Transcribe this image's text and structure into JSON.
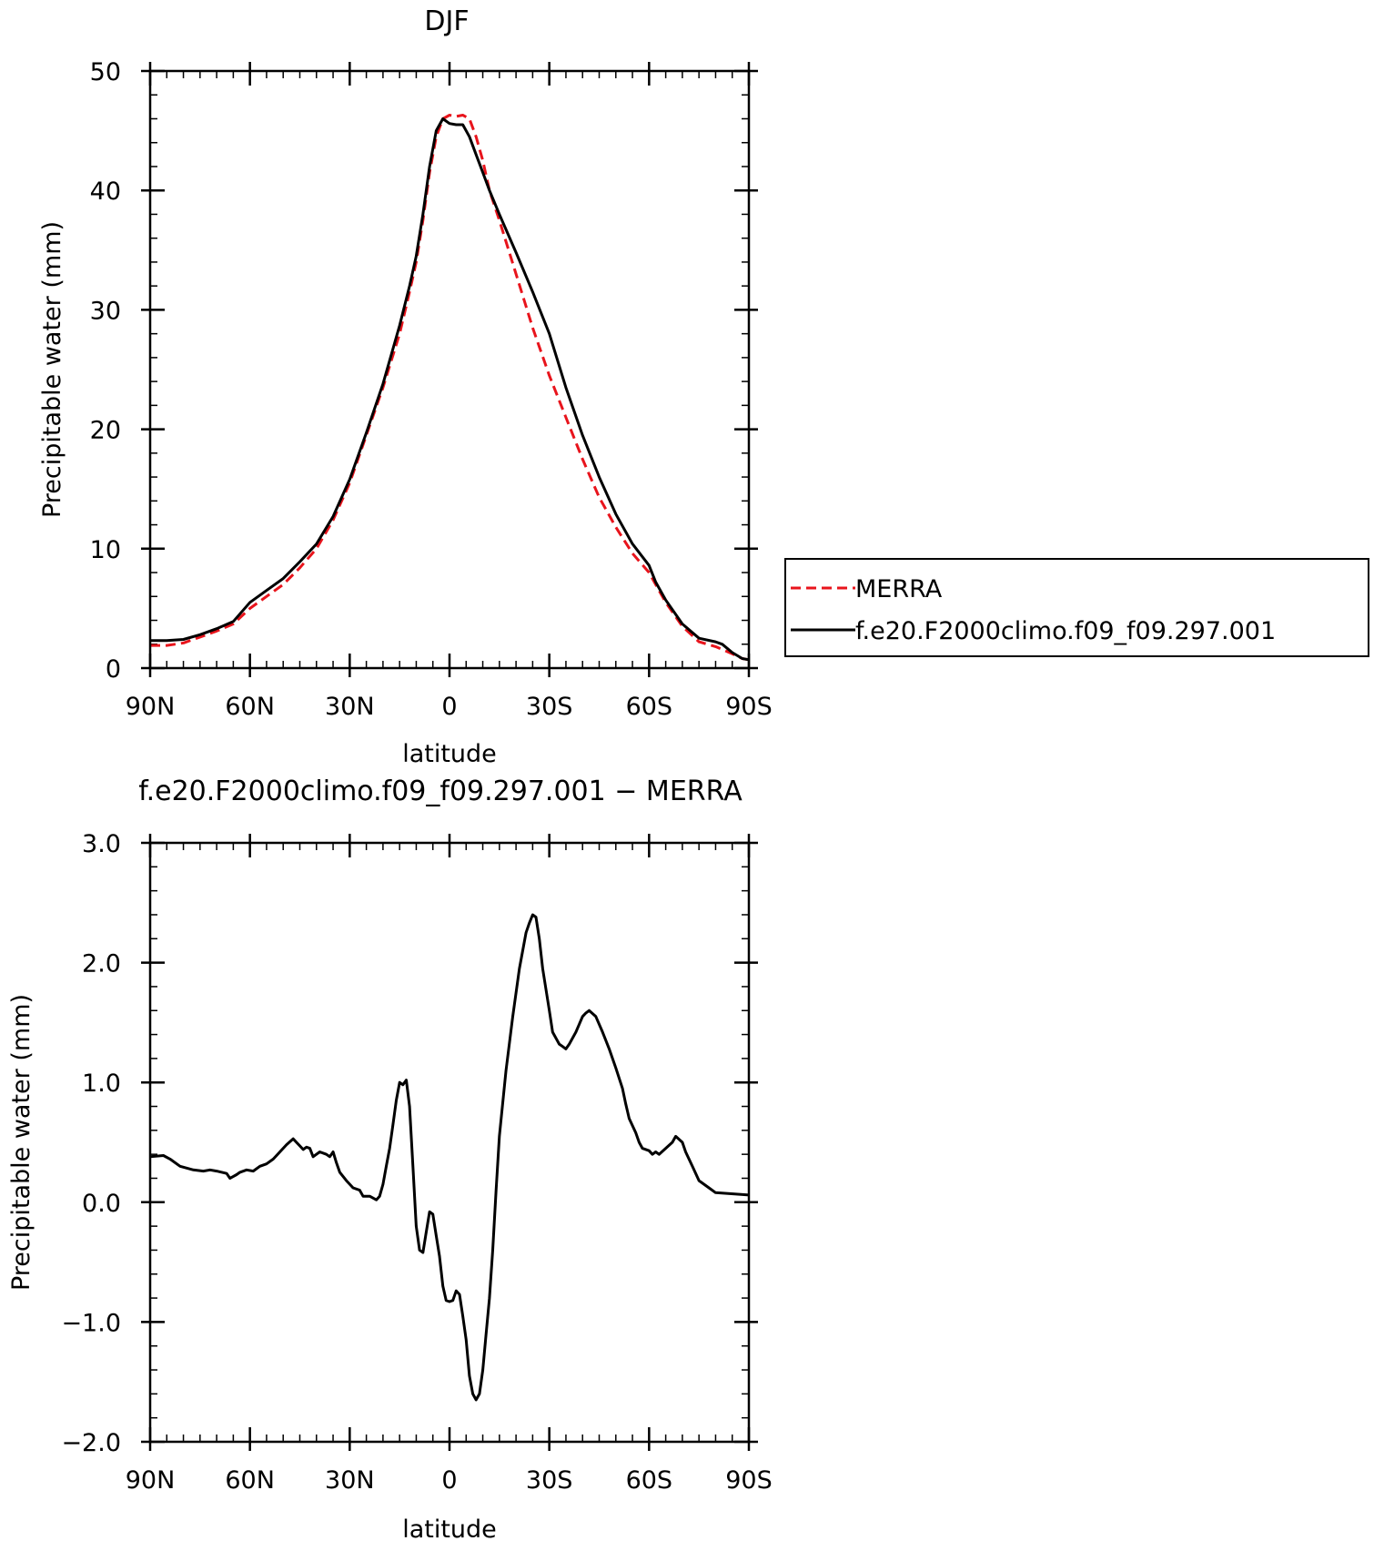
{
  "chart_data": [
    {
      "type": "line",
      "title": "DJF",
      "xlabel": "latitude",
      "ylabel": "Precipitable water (mm)",
      "xlim": [
        90,
        -90
      ],
      "ylim": [
        0,
        50
      ],
      "x_ticks": [
        {
          "value": 90,
          "label": "90N"
        },
        {
          "value": 60,
          "label": "60N"
        },
        {
          "value": 30,
          "label": "30N"
        },
        {
          "value": 0,
          "label": "0"
        },
        {
          "value": -30,
          "label": "30S"
        },
        {
          "value": -60,
          "label": "60S"
        },
        {
          "value": -90,
          "label": "90S"
        }
      ],
      "y_ticks": [
        {
          "value": 0,
          "label": "0"
        },
        {
          "value": 10,
          "label": "10"
        },
        {
          "value": 20,
          "label": "20"
        },
        {
          "value": 30,
          "label": "30"
        },
        {
          "value": 40,
          "label": "40"
        },
        {
          "value": 50,
          "label": "50"
        }
      ],
      "legend_position": "right",
      "series": [
        {
          "name": "MERRA",
          "color": "#e8141c",
          "dash": "dashed",
          "points": [
            [
              90,
              1.9
            ],
            [
              85,
              1.9
            ],
            [
              80,
              2.1
            ],
            [
              75,
              2.6
            ],
            [
              70,
              3.1
            ],
            [
              65,
              3.7
            ],
            [
              60,
              5.0
            ],
            [
              55,
              6.0
            ],
            [
              50,
              7.0
            ],
            [
              45,
              8.4
            ],
            [
              40,
              10.0
            ],
            [
              35,
              12.4
            ],
            [
              30,
              15.5
            ],
            [
              25,
              19.5
            ],
            [
              20,
              23.5
            ],
            [
              15,
              28.0
            ],
            [
              12,
              31.5
            ],
            [
              10,
              34.0
            ],
            [
              8,
              37.5
            ],
            [
              6,
              41.5
            ],
            [
              4,
              44.5
            ],
            [
              2,
              46.0
            ],
            [
              0,
              46.3
            ],
            [
              -2,
              46.2
            ],
            [
              -4,
              46.3
            ],
            [
              -6,
              46.0
            ],
            [
              -8,
              44.5
            ],
            [
              -10,
              42.5
            ],
            [
              -12,
              40.0
            ],
            [
              -15,
              37.5
            ],
            [
              -20,
              33.0
            ],
            [
              -25,
              28.5
            ],
            [
              -30,
              24.5
            ],
            [
              -35,
              21.0
            ],
            [
              -40,
              17.5
            ],
            [
              -45,
              14.3
            ],
            [
              -50,
              11.8
            ],
            [
              -55,
              9.6
            ],
            [
              -60,
              8.0
            ],
            [
              -62,
              7.0
            ],
            [
              -65,
              5.5
            ],
            [
              -70,
              3.5
            ],
            [
              -75,
              2.2
            ],
            [
              -80,
              1.8
            ],
            [
              -85,
              1.2
            ],
            [
              -88,
              0.8
            ],
            [
              -90,
              0.7
            ]
          ]
        },
        {
          "name": "f.e20.F2000climo.f09_f09.297.001",
          "color": "#000000",
          "dash": "solid",
          "points": [
            [
              90,
              2.3
            ],
            [
              85,
              2.3
            ],
            [
              80,
              2.4
            ],
            [
              75,
              2.8
            ],
            [
              70,
              3.3
            ],
            [
              65,
              3.9
            ],
            [
              60,
              5.5
            ],
            [
              55,
              6.5
            ],
            [
              50,
              7.5
            ],
            [
              45,
              8.9
            ],
            [
              40,
              10.4
            ],
            [
              35,
              12.7
            ],
            [
              30,
              15.8
            ],
            [
              25,
              19.7
            ],
            [
              20,
              23.8
            ],
            [
              15,
              28.7
            ],
            [
              12,
              32.0
            ],
            [
              10,
              34.5
            ],
            [
              8,
              38.0
            ],
            [
              6,
              42.0
            ],
            [
              4,
              45.0
            ],
            [
              2,
              46.0
            ],
            [
              0,
              45.6
            ],
            [
              -2,
              45.5
            ],
            [
              -4,
              45.5
            ],
            [
              -6,
              44.5
            ],
            [
              -8,
              43.0
            ],
            [
              -10,
              41.5
            ],
            [
              -12,
              40.0
            ],
            [
              -15,
              38.0
            ],
            [
              -20,
              34.8
            ],
            [
              -25,
              31.5
            ],
            [
              -30,
              28.0
            ],
            [
              -35,
              23.5
            ],
            [
              -40,
              19.5
            ],
            [
              -45,
              16.0
            ],
            [
              -50,
              12.9
            ],
            [
              -55,
              10.4
            ],
            [
              -60,
              8.6
            ],
            [
              -62,
              7.2
            ],
            [
              -65,
              5.7
            ],
            [
              -70,
              3.7
            ],
            [
              -75,
              2.5
            ],
            [
              -80,
              2.2
            ],
            [
              -82,
              2.0
            ],
            [
              -85,
              1.3
            ],
            [
              -88,
              0.8
            ],
            [
              -90,
              0.7
            ]
          ]
        }
      ]
    },
    {
      "type": "line",
      "title": "f.e20.F2000climo.f09_f09.297.001 − MERRA",
      "xlabel": "latitude",
      "ylabel": "Precipitable water (mm)",
      "xlim": [
        90,
        -90
      ],
      "ylim": [
        -2.0,
        3.0
      ],
      "x_ticks": [
        {
          "value": 90,
          "label": "90N"
        },
        {
          "value": 60,
          "label": "60N"
        },
        {
          "value": 30,
          "label": "30N"
        },
        {
          "value": 0,
          "label": "0"
        },
        {
          "value": -30,
          "label": "30S"
        },
        {
          "value": -60,
          "label": "60S"
        },
        {
          "value": -90,
          "label": "90S"
        }
      ],
      "y_ticks": [
        {
          "value": -2.0,
          "label": "−2.0"
        },
        {
          "value": -1.0,
          "label": "−1.0"
        },
        {
          "value": 0.0,
          "label": "0.0"
        },
        {
          "value": 1.0,
          "label": "1.0"
        },
        {
          "value": 2.0,
          "label": "2.0"
        },
        {
          "value": 3.0,
          "label": "3.0"
        }
      ],
      "series": [
        {
          "name": "",
          "color": "#000000",
          "dash": "solid",
          "points": [
            [
              90,
              0.38
            ],
            [
              86,
              0.39
            ],
            [
              84,
              0.36
            ],
            [
              81,
              0.3
            ],
            [
              77,
              0.27
            ],
            [
              74,
              0.26
            ],
            [
              72,
              0.27
            ],
            [
              70,
              0.26
            ],
            [
              67,
              0.24
            ],
            [
              66,
              0.2
            ],
            [
              64,
              0.23
            ],
            [
              63,
              0.25
            ],
            [
              61,
              0.27
            ],
            [
              59,
              0.26
            ],
            [
              57,
              0.3
            ],
            [
              55,
              0.32
            ],
            [
              53,
              0.36
            ],
            [
              51,
              0.42
            ],
            [
              49,
              0.48
            ],
            [
              47,
              0.53
            ],
            [
              46,
              0.5
            ],
            [
              45,
              0.47
            ],
            [
              44,
              0.44
            ],
            [
              43,
              0.46
            ],
            [
              42,
              0.45
            ],
            [
              41,
              0.38
            ],
            [
              39,
              0.42
            ],
            [
              37,
              0.4
            ],
            [
              36,
              0.38
            ],
            [
              35,
              0.42
            ],
            [
              34,
              0.33
            ],
            [
              33,
              0.25
            ],
            [
              31,
              0.18
            ],
            [
              29,
              0.12
            ],
            [
              27,
              0.1
            ],
            [
              26,
              0.05
            ],
            [
              24,
              0.05
            ],
            [
              22,
              0.02
            ],
            [
              21,
              0.05
            ],
            [
              20,
              0.15
            ],
            [
              19,
              0.3
            ],
            [
              18,
              0.45
            ],
            [
              17,
              0.65
            ],
            [
              16,
              0.85
            ],
            [
              15,
              1.0
            ],
            [
              14,
              0.98
            ],
            [
              13,
              1.02
            ],
            [
              12,
              0.8
            ],
            [
              11,
              0.3
            ],
            [
              10,
              -0.2
            ],
            [
              9,
              -0.4
            ],
            [
              8,
              -0.42
            ],
            [
              7,
              -0.25
            ],
            [
              6,
              -0.08
            ],
            [
              5,
              -0.1
            ],
            [
              4,
              -0.28
            ],
            [
              3,
              -0.45
            ],
            [
              2,
              -0.7
            ],
            [
              1,
              -0.82
            ],
            [
              0,
              -0.83
            ],
            [
              -1,
              -0.82
            ],
            [
              -2,
              -0.74
            ],
            [
              -3,
              -0.77
            ],
            [
              -4,
              -0.95
            ],
            [
              -5,
              -1.15
            ],
            [
              -6,
              -1.45
            ],
            [
              -7,
              -1.6
            ],
            [
              -8,
              -1.65
            ],
            [
              -9,
              -1.6
            ],
            [
              -10,
              -1.4
            ],
            [
              -11,
              -1.1
            ],
            [
              -12,
              -0.8
            ],
            [
              -13,
              -0.4
            ],
            [
              -14,
              0.1
            ],
            [
              -15,
              0.55
            ],
            [
              -17,
              1.1
            ],
            [
              -19,
              1.55
            ],
            [
              -21,
              1.95
            ],
            [
              -23,
              2.25
            ],
            [
              -24,
              2.33
            ],
            [
              -25,
              2.4
            ],
            [
              -26,
              2.38
            ],
            [
              -27,
              2.2
            ],
            [
              -28,
              1.95
            ],
            [
              -30,
              1.6
            ],
            [
              -31,
              1.42
            ],
            [
              -33,
              1.32
            ],
            [
              -34,
              1.3
            ],
            [
              -35,
              1.28
            ],
            [
              -36,
              1.32
            ],
            [
              -38,
              1.42
            ],
            [
              -40,
              1.55
            ],
            [
              -41,
              1.58
            ],
            [
              -42,
              1.6
            ],
            [
              -44,
              1.55
            ],
            [
              -46,
              1.42
            ],
            [
              -48,
              1.28
            ],
            [
              -50,
              1.12
            ],
            [
              -52,
              0.95
            ],
            [
              -53,
              0.82
            ],
            [
              -54,
              0.7
            ],
            [
              -56,
              0.58
            ],
            [
              -57,
              0.5
            ],
            [
              -58,
              0.45
            ],
            [
              -60,
              0.43
            ],
            [
              -61,
              0.4
            ],
            [
              -62,
              0.42
            ],
            [
              -63,
              0.4
            ],
            [
              -65,
              0.45
            ],
            [
              -67,
              0.5
            ],
            [
              -68,
              0.55
            ],
            [
              -70,
              0.5
            ],
            [
              -71,
              0.42
            ],
            [
              -73,
              0.3
            ],
            [
              -75,
              0.18
            ],
            [
              -78,
              0.12
            ],
            [
              -80,
              0.08
            ],
            [
              -90,
              0.06
            ]
          ]
        }
      ]
    }
  ]
}
